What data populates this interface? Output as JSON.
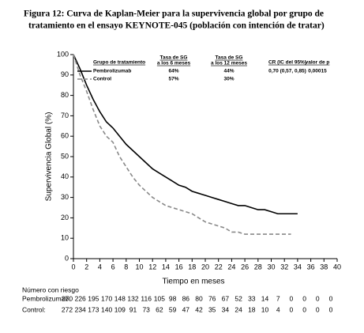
{
  "chart_data": {
    "type": "line",
    "title": [
      "Figura 12: Curva de Kaplan-Meier para la supervivencia global por grupo de",
      "tratamiento en el ensayo KEYNOTE-045 (población con intención de tratar)"
    ],
    "x_label": "Tiempo en meses",
    "y_label": "Supervivencia Global (%)",
    "xlim": [
      0,
      40
    ],
    "xticks": [
      0,
      2,
      4,
      6,
      8,
      10,
      12,
      14,
      16,
      18,
      20,
      22,
      24,
      26,
      28,
      30,
      32,
      34,
      36,
      38,
      40
    ],
    "ylim": [
      0,
      100
    ],
    "yticks": [
      0,
      10,
      20,
      30,
      40,
      50,
      60,
      70,
      80,
      90,
      100
    ],
    "series": [
      {
        "name": "Pembrolizumab",
        "color": "#000000",
        "dashed": false,
        "x": [
          0,
          1,
          2,
          3,
          4,
          5,
          6,
          7,
          8,
          9,
          10,
          11,
          12,
          13,
          14,
          15,
          16,
          17,
          18,
          19,
          20,
          21,
          22,
          23,
          24,
          25,
          26,
          27,
          28,
          29,
          30,
          31,
          32,
          33,
          34
        ],
        "values": [
          100,
          93,
          85,
          78,
          72,
          67,
          64,
          60,
          56,
          53,
          50,
          47,
          44,
          42,
          40,
          38,
          36,
          35,
          33,
          32,
          31,
          30,
          29,
          28,
          27,
          26,
          26,
          25,
          24,
          24,
          23,
          22,
          22,
          22,
          22
        ]
      },
      {
        "name": "Control",
        "color": "#888888",
        "dashed": true,
        "x": [
          0,
          1,
          2,
          3,
          4,
          5,
          6,
          7,
          8,
          9,
          10,
          11,
          12,
          13,
          14,
          15,
          16,
          17,
          18,
          19,
          20,
          21,
          22,
          23,
          24,
          25,
          26,
          27,
          28,
          29,
          30,
          31,
          32,
          33
        ],
        "values": [
          100,
          90,
          82,
          73,
          65,
          60,
          57,
          50,
          45,
          40,
          36,
          33,
          30,
          28,
          26,
          25,
          24,
          23,
          22,
          20,
          18,
          17,
          16,
          15,
          13,
          13,
          12,
          12,
          12,
          12,
          12,
          12,
          12,
          12
        ]
      }
    ],
    "legend_table": {
      "headers": [
        [
          "Grupo de tratamiento"
        ],
        [
          "Tasa de SG",
          "a los 6 meses"
        ],
        [
          "Tasa de SG",
          "a los 12 meses"
        ],
        [
          "CR (IC del 95%)"
        ],
        [
          "valor de p"
        ]
      ],
      "rows": [
        [
          "Pembrolizumab",
          "64%",
          "44%",
          "0,70 (0,57, 0,85)",
          "0,00015"
        ],
        [
          "Control",
          "57%",
          "30%"
        ]
      ]
    },
    "risk_table": {
      "title": "Número con riesgo",
      "rows": [
        {
          "label": "Pembrolizumab:",
          "values": [
            270,
            226,
            195,
            170,
            148,
            132,
            116,
            105,
            98,
            86,
            80,
            76,
            67,
            52,
            33,
            14,
            7,
            0,
            0,
            0,
            0
          ]
        },
        {
          "label": "Control:",
          "values": [
            272,
            234,
            173,
            140,
            109,
            91,
            73,
            62,
            59,
            47,
            42,
            35,
            34,
            24,
            18,
            10,
            4,
            0,
            0,
            0,
            0
          ]
        }
      ]
    }
  }
}
